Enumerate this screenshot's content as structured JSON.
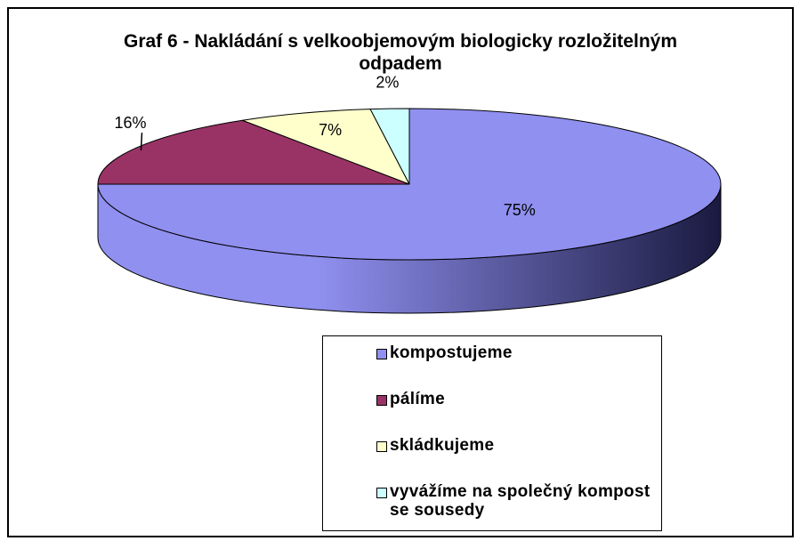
{
  "chart_data": {
    "type": "pie3d",
    "title": "Graf 6 - Nakládání s velkoobjemovým biologicky rozložitelným odpadem",
    "categories": [
      "kompostujeme",
      "pálíme",
      "skládkujeme",
      "vyvážíme na společný kompost se sousedy"
    ],
    "values": [
      75,
      16,
      7,
      2
    ],
    "value_labels": [
      "75%",
      "16%",
      "7%",
      "2%"
    ],
    "colors": [
      "#9090f0",
      "#993366",
      "#ffffcc",
      "#ccffff"
    ],
    "legend": "bottom-right"
  }
}
